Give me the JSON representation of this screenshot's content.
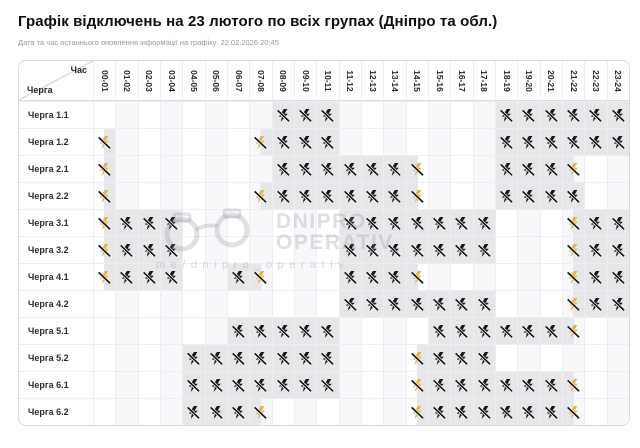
{
  "title": "Графік відключень на 23 лютого по всіх групах (Дніпро та обл.)",
  "subtitle": "Дата та час останнього оновлення інформації на графіку: 22.02.2026 20:45",
  "corner": {
    "top": "Час",
    "bottom": "Черга"
  },
  "watermark": {
    "icon": "handcuffs-icon",
    "line1": "DNIPRO",
    "line2": "OPERATIV",
    "line3": "me/dnipro_operativ"
  },
  "colors": {
    "outage_cell_bg": "#e7e7ea",
    "icon_black": "#17171a",
    "icon_yellow_bolt": "#e2b44e",
    "grid_border": "#ededf2",
    "outer_border": "#d9d9e0"
  },
  "icons": {
    "full_outage": "outage-icon",
    "partial_outage": "partial-outage-icon"
  },
  "chart_data": {
    "type": "table",
    "title": "Графік відключень на 23 лютого по всіх групах (Дніпро та обл.)",
    "x_categories": [
      "00-01",
      "01-02",
      "02-03",
      "03-04",
      "04-05",
      "05-06",
      "06-07",
      "07-08",
      "08-09",
      "09-10",
      "10-11",
      "11-12",
      "12-13",
      "13-14",
      "14-15",
      "15-16",
      "16-17",
      "17-18",
      "18-19",
      "19-20",
      "20-21",
      "21-22",
      "22-23",
      "23-24"
    ],
    "cell_state_legend": {
      "": "no outage",
      "b": "outage full hour — black crossed-out lightning icon, gray cell",
      "yl": "outage first half of hour — yellow bolt icon, left half of cell gray",
      "yr": "outage second half of hour — yellow bolt icon, right half of cell gray"
    },
    "rows": [
      {
        "label": "Черга 1.1",
        "cells": [
          "",
          "",
          "",
          "",
          "",
          "",
          "",
          "",
          "b",
          "b",
          "b",
          "",
          "",
          "",
          "",
          "",
          "",
          "",
          "b",
          "b",
          "b",
          "b",
          "b",
          "b"
        ]
      },
      {
        "label": "Черга 1.2",
        "cells": [
          "yr",
          "",
          "",
          "",
          "",
          "",
          "",
          "yr",
          "b",
          "b",
          "b",
          "",
          "",
          "",
          "",
          "",
          "",
          "",
          "b",
          "b",
          "b",
          "b",
          "b",
          "b"
        ]
      },
      {
        "label": "Черга 2.1",
        "cells": [
          "yr",
          "",
          "",
          "",
          "",
          "",
          "",
          "",
          "b",
          "b",
          "b",
          "b",
          "b",
          "b",
          "yl",
          "",
          "",
          "",
          "b",
          "b",
          "b",
          "yl",
          "",
          ""
        ]
      },
      {
        "label": "Черга 2.2",
        "cells": [
          "yr",
          "",
          "",
          "",
          "",
          "",
          "",
          "yr",
          "b",
          "b",
          "b",
          "b",
          "b",
          "b",
          "yl",
          "",
          "",
          "",
          "b",
          "b",
          "b",
          "b",
          "",
          ""
        ]
      },
      {
        "label": "Черга 3.1",
        "cells": [
          "yr",
          "b",
          "b",
          "b",
          "",
          "",
          "",
          "",
          "",
          "",
          "",
          "b",
          "b",
          "b",
          "b",
          "b",
          "b",
          "b",
          "",
          "",
          "",
          "yr",
          "b",
          "b"
        ]
      },
      {
        "label": "Черга 3.2",
        "cells": [
          "yr",
          "b",
          "b",
          "b",
          "",
          "",
          "",
          "",
          "",
          "",
          "",
          "b",
          "b",
          "b",
          "b",
          "b",
          "b",
          "b",
          "",
          "",
          "",
          "yr",
          "b",
          "b"
        ]
      },
      {
        "label": "Черга 4.1",
        "cells": [
          "yr",
          "b",
          "b",
          "b",
          "",
          "",
          "b",
          "yl",
          "",
          "",
          "",
          "b",
          "b",
          "b",
          "yl",
          "",
          "",
          "",
          "",
          "",
          "",
          "yr",
          "b",
          "b"
        ]
      },
      {
        "label": "Черга 4.2",
        "cells": [
          "",
          "",
          "",
          "",
          "",
          "",
          "",
          "",
          "",
          "",
          "",
          "b",
          "b",
          "b",
          "b",
          "b",
          "b",
          "b",
          "",
          "",
          "",
          "yr",
          "b",
          "b"
        ]
      },
      {
        "label": "Черга 5.1",
        "cells": [
          "",
          "",
          "",
          "",
          "",
          "",
          "b",
          "b",
          "b",
          "b",
          "b",
          "",
          "",
          "",
          "",
          "b",
          "b",
          "b",
          "b",
          "b",
          "b",
          "yl",
          "",
          ""
        ]
      },
      {
        "label": "Черга 5.2",
        "cells": [
          "",
          "",
          "",
          "",
          "b",
          "b",
          "b",
          "b",
          "b",
          "b",
          "b",
          "",
          "",
          "",
          "yr",
          "b",
          "b",
          "b",
          "",
          "",
          "",
          "",
          "",
          ""
        ]
      },
      {
        "label": "Черга 6.1",
        "cells": [
          "",
          "",
          "",
          "",
          "b",
          "b",
          "b",
          "b",
          "b",
          "b",
          "b",
          "",
          "",
          "",
          "yr",
          "b",
          "b",
          "b",
          "b",
          "b",
          "b",
          "yl",
          "",
          ""
        ]
      },
      {
        "label": "Черга 6.2",
        "cells": [
          "",
          "",
          "",
          "",
          "b",
          "b",
          "b",
          "yl",
          "",
          "",
          "",
          "",
          "",
          "",
          "yr",
          "b",
          "b",
          "b",
          "b",
          "b",
          "b",
          "yl",
          "",
          ""
        ]
      }
    ]
  }
}
